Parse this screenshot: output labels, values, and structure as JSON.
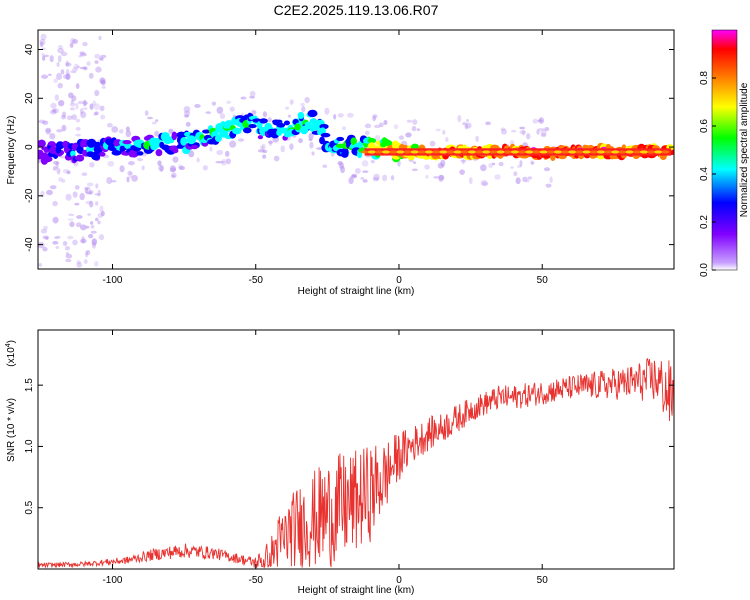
{
  "title": "C2E2.2025.119.13.06.R07",
  "chart_data": [
    {
      "type": "heatmap",
      "xlabel": "Height of straight line (km)",
      "ylabel": "Frequency (Hz)",
      "xlim": [
        -126,
        96
      ],
      "ylim": [
        -50,
        48
      ],
      "xticks": [
        -100,
        -50,
        0,
        50
      ],
      "yticks": [
        -40,
        -20,
        0,
        20,
        40
      ],
      "colorbar": {
        "label": "Normalized spectral amplitude",
        "range": [
          0,
          1
        ],
        "ticks": [
          "0.0",
          "0.2",
          "0.4",
          "0.6",
          "0.8"
        ],
        "colormap": [
          "#ffffff",
          "#8000ff",
          "#0000ff",
          "#00ffff",
          "#00ff00",
          "#ffff00",
          "#ff8000",
          "#ff0000",
          "#ff00ff"
        ]
      },
      "ridge": {
        "x": [
          -125,
          -115,
          -105,
          -95,
          -85,
          -75,
          -65,
          -57,
          -52,
          -48,
          -44,
          -40,
          -35,
          -30,
          -27,
          -24,
          -20,
          -15,
          -10,
          -5,
          0,
          10,
          30,
          60,
          95
        ],
        "freq": [
          -2,
          -2,
          -1,
          0,
          1,
          2,
          5,
          8,
          10,
          7,
          8,
          6,
          9,
          11,
          6,
          0,
          0,
          0,
          0,
          -1,
          -2,
          -2,
          -2,
          -2,
          -2
        ],
        "strength": [
          0.3,
          0.3,
          0.35,
          0.4,
          0.45,
          0.45,
          0.5,
          0.55,
          0.5,
          0.4,
          0.45,
          0.45,
          0.5,
          0.55,
          0.45,
          0.4,
          0.5,
          0.55,
          0.65,
          0.75,
          0.8,
          0.85,
          0.9,
          0.95,
          0.95
        ]
      }
    },
    {
      "type": "line",
      "xlabel": "Height of straight line (km)",
      "ylabel": "SNR (10 * v/v)",
      "exponent_label": "(x10",
      "exponent_sup": "4",
      "xlim": [
        -126,
        96
      ],
      "ylim": [
        0,
        1.95
      ],
      "xticks": [
        -100,
        -50,
        0,
        50
      ],
      "yticks": [
        "0.5",
        "1.0",
        "1.5"
      ],
      "color": "#e8322f",
      "series": [
        {
          "x": [
            -126,
            -110,
            -95,
            -85,
            -75,
            -65,
            -55,
            -50,
            -45,
            -42,
            -38,
            -35,
            -30,
            -25,
            -20,
            -15,
            -10,
            -5,
            0,
            5,
            10,
            15,
            20,
            25,
            30,
            35,
            40,
            45,
            50,
            60,
            70,
            80,
            90,
            95
          ],
          "mean": [
            0.03,
            0.04,
            0.07,
            0.12,
            0.15,
            0.13,
            0.08,
            0.05,
            0.1,
            0.2,
            0.3,
            0.35,
            0.4,
            0.45,
            0.5,
            0.55,
            0.62,
            0.75,
            0.92,
            1.02,
            1.1,
            1.15,
            1.22,
            1.3,
            1.35,
            1.4,
            1.4,
            1.42,
            1.44,
            1.48,
            1.5,
            1.52,
            1.55,
            1.4
          ],
          "spread": [
            0.02,
            0.02,
            0.03,
            0.05,
            0.06,
            0.05,
            0.04,
            0.05,
            0.15,
            0.25,
            0.3,
            0.35,
            0.4,
            0.45,
            0.45,
            0.42,
            0.4,
            0.3,
            0.2,
            0.15,
            0.14,
            0.12,
            0.12,
            0.1,
            0.1,
            0.1,
            0.1,
            0.1,
            0.1,
            0.1,
            0.12,
            0.14,
            0.2,
            0.3
          ]
        }
      ]
    }
  ]
}
